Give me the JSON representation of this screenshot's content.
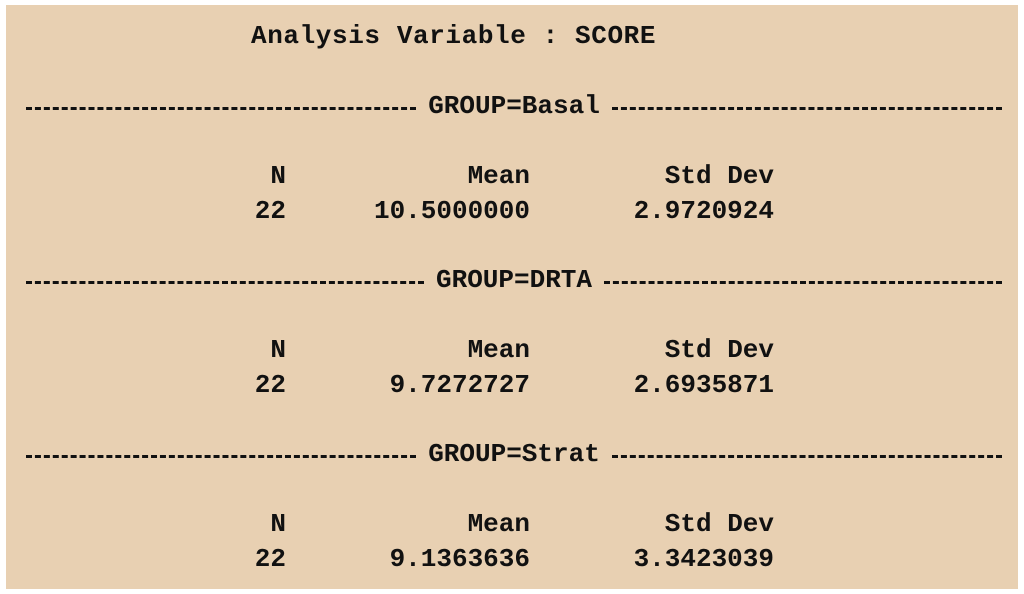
{
  "title": "Analysis Variable : SCORE",
  "headers": {
    "n": "N",
    "mean": "Mean",
    "std_dev": "Std Dev"
  },
  "groups": [
    {
      "label": "GROUP=Basal",
      "n": "22",
      "mean": "10.5000000",
      "std_dev": "2.9720924"
    },
    {
      "label": "GROUP=DRTA",
      "n": "22",
      "mean": "9.7272727",
      "std_dev": "2.6935871"
    },
    {
      "label": "GROUP=Strat",
      "n": "22",
      "mean": "9.1363636",
      "std_dev": "3.3423039"
    }
  ],
  "colors": {
    "background": "#e8d0b2",
    "text": "#111111"
  }
}
